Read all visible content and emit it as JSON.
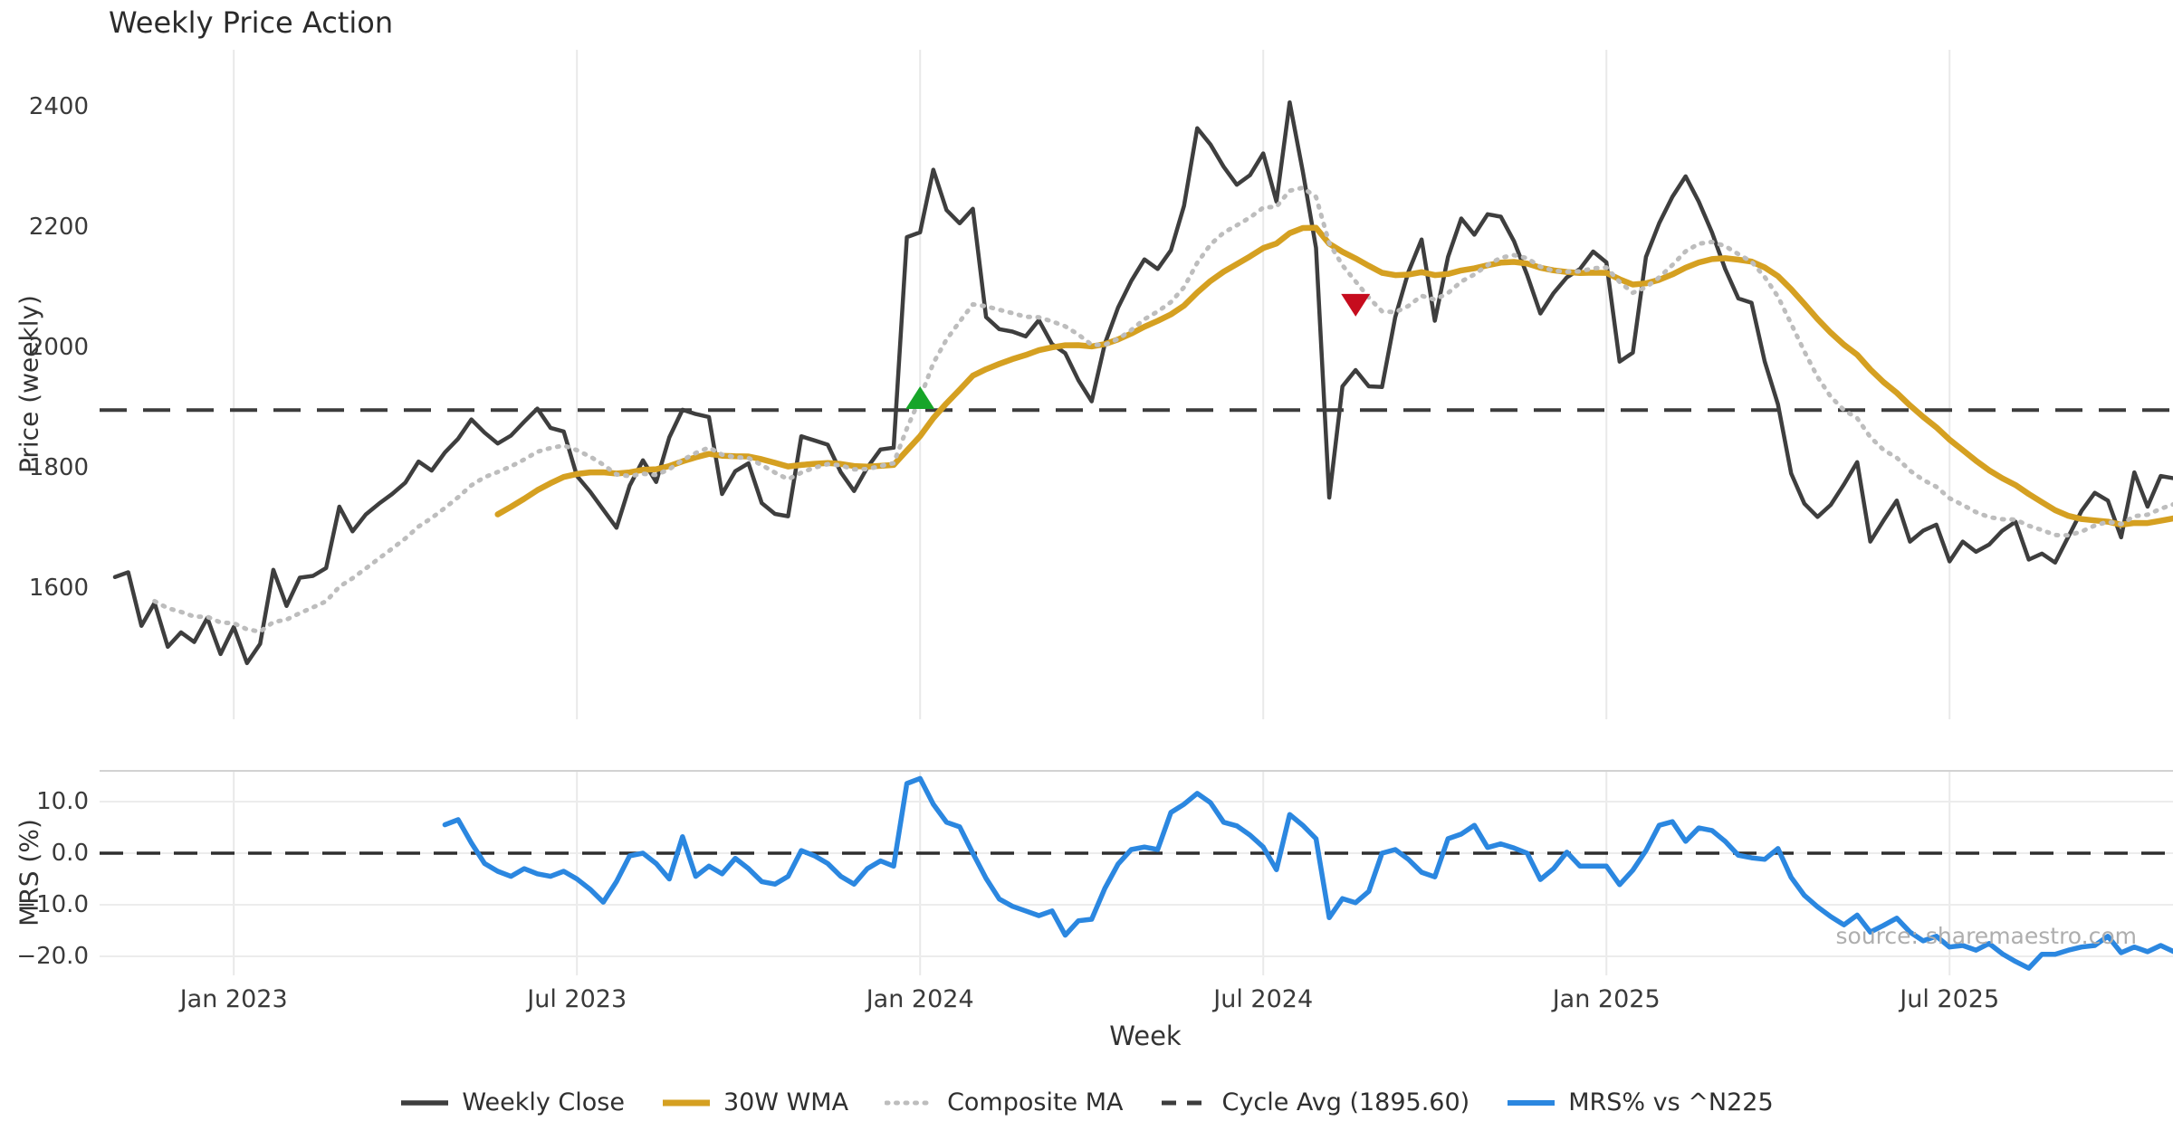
{
  "title": "Weekly Price Action",
  "xlabel": "Week",
  "source": "source: sharemaestro.com",
  "price_panel": {
    "ylabel": "Price (weekly)"
  },
  "mrs_panel": {
    "ylabel": "MRS (%)"
  },
  "legend": [
    {
      "label": "Weekly Close",
      "swatch": "solid-dark"
    },
    {
      "label": "30W WMA",
      "swatch": "solid-gold"
    },
    {
      "label": "Composite MA",
      "swatch": "dotted-gray"
    },
    {
      "label": "Cycle Avg (1895.60)",
      "swatch": "dashed-dark"
    },
    {
      "label": "MRS% vs ^N225",
      "swatch": "solid-blue"
    }
  ],
  "colors": {
    "close": "#3e3e3e",
    "wma": "#d5a021",
    "composite": "#bdbdbd",
    "cycle": "#3c3c3c",
    "mrs": "#2b87e0",
    "green_marker": "#17a529",
    "red_marker": "#c60c1e",
    "grid": "#e9e9e9",
    "grid_h": "#ececec",
    "spine": "#d2d2d2",
    "zero_dash": "#2e2e2e"
  },
  "chart_data": [
    {
      "type": "line",
      "title": "Weekly Price Action",
      "ylabel": "Price (weekly)",
      "yticks": [
        2400,
        2200,
        2000,
        1800,
        1600
      ],
      "ylim": [
        1390,
        2490
      ],
      "grid": "vertical-only",
      "x_tick_labels": [
        "Jan 2023",
        "Jul 2023",
        "Jan 2024",
        "Jul 2024",
        "Jan 2025",
        "Jul 2025"
      ],
      "x_tick_weeks": [
        9,
        35,
        61,
        87,
        113,
        139
      ],
      "cycle_avg": 1895.6,
      "series": [
        {
          "name": "Weekly Close",
          "style": "solid",
          "start_week": 0,
          "values": [
            1618,
            1626,
            1537,
            1575,
            1502,
            1526,
            1510,
            1550,
            1490,
            1535,
            1475,
            1507,
            1630,
            1570,
            1617,
            1620,
            1633,
            1735,
            1694,
            1722,
            1740,
            1756,
            1775,
            1810,
            1795,
            1825,
            1848,
            1880,
            1858,
            1840,
            1853,
            1876,
            1898,
            1866,
            1860,
            1786,
            1760,
            1730,
            1700,
            1770,
            1812,
            1776,
            1850,
            1896,
            1889,
            1884,
            1756,
            1794,
            1807,
            1741,
            1723,
            1719,
            1852,
            1845,
            1838,
            1792,
            1761,
            1800,
            1830,
            1833,
            2183,
            2191,
            2295,
            2228,
            2206,
            2230,
            2050,
            2030,
            2026,
            2018,
            2045,
            2005,
            1990,
            1945,
            1910,
            2006,
            2066,
            2110,
            2146,
            2130,
            2161,
            2235,
            2364,
            2337,
            2300,
            2270,
            2286,
            2322,
            2242,
            2407,
            2292,
            2165,
            1750,
            1935,
            1962,
            1935,
            1934,
            2050,
            2125,
            2179,
            2044,
            2150,
            2214,
            2187,
            2221,
            2217,
            2176,
            2120,
            2056,
            2090,
            2116,
            2130,
            2159,
            2141,
            1976,
            1991,
            2150,
            2206,
            2250,
            2284,
            2242,
            2191,
            2130,
            2081,
            2074,
            1976,
            1905,
            1790,
            1740,
            1718,
            1738,
            1772,
            1809,
            1677,
            1712,
            1745,
            1677,
            1695,
            1705,
            1644,
            1677,
            1660,
            1672,
            1695,
            1710,
            1647,
            1657,
            1642,
            1685,
            1728,
            1758,
            1745,
            1684,
            1792,
            1735,
            1786,
            1782
          ]
        },
        {
          "name": "30W WMA",
          "style": "solid",
          "derived": "wma",
          "window": 30,
          "start_week": 29
        },
        {
          "name": "Composite MA",
          "style": "dotted",
          "derived": "ema",
          "span": 12,
          "start_week": 3
        },
        {
          "name": "Cycle Avg",
          "style": "dashed",
          "value": 1895.6
        }
      ],
      "markers": [
        {
          "shape": "triangle-up",
          "week": 61,
          "value": 1914,
          "color_key": "green_marker"
        },
        {
          "shape": "triangle-down",
          "week": 94,
          "value": 2072,
          "color_key": "red_marker"
        }
      ]
    },
    {
      "type": "line",
      "ylabel": "MRS (%)",
      "yticks": [
        10,
        0,
        -10,
        -20
      ],
      "ytick_labels": [
        "10.0",
        "0.0",
        "−10.0",
        "−20.0"
      ],
      "ylim": [
        -24,
        16
      ],
      "zero_line": "dashed",
      "series": [
        {
          "name": "MRS% vs ^N225",
          "style": "solid",
          "start_week": 25,
          "values": [
            5.5,
            6.5,
            2.0,
            -2.0,
            -3.5,
            -4.5,
            -3.0,
            -4.0,
            -4.5,
            -3.5,
            -5.0,
            -7.0,
            -9.5,
            -5.5,
            -0.5,
            0.0,
            -2.0,
            -5.0,
            3.2,
            -4.5,
            -2.5,
            -4.0,
            -1.0,
            -3.0,
            -5.5,
            -6.0,
            -4.5,
            0.5,
            -0.5,
            -2.0,
            -4.5,
            -6.0,
            -3.0,
            -1.5,
            -2.5,
            13.5,
            14.5,
            9.5,
            6.0,
            5.1,
            0.0,
            -4.9,
            -8.9,
            -10.3,
            -11.2,
            -12.1,
            -11.2,
            -15.9,
            -13.1,
            -12.8,
            -6.8,
            -2.1,
            0.7,
            1.2,
            0.7,
            7.9,
            9.5,
            11.6,
            9.8,
            6.0,
            5.3,
            3.5,
            1.2,
            -3.2,
            7.5,
            5.4,
            2.8,
            -12.5,
            -8.8,
            -9.6,
            -7.4,
            0.0,
            0.7,
            -1.2,
            -3.7,
            -4.6,
            2.8,
            3.7,
            5.4,
            1.1,
            1.8,
            1.0,
            0.0,
            -5.1,
            -3.0,
            0.2,
            -2.5,
            -2.5,
            -2.5,
            -6.1,
            -3.3,
            0.5,
            5.4,
            6.1,
            2.3,
            4.9,
            4.4,
            2.3,
            -0.4,
            -0.9,
            -1.2,
            0.9,
            -4.7,
            -8.2,
            -10.4,
            -12.3,
            -13.9,
            -12.0,
            -15.3,
            -14.0,
            -12.6,
            -15.3,
            -17.0,
            -16.1,
            -18.2,
            -17.9,
            -18.8,
            -17.5,
            -19.5,
            -21.0,
            -22.3,
            -19.6,
            -19.6,
            -18.8,
            -18.2,
            -17.9,
            -16.1,
            -19.3,
            -18.2,
            -19.1,
            -17.9,
            -19.1
          ]
        }
      ]
    }
  ]
}
